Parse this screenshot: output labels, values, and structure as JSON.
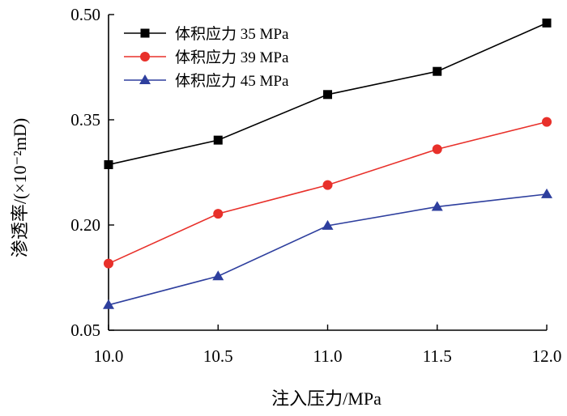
{
  "chart_data": {
    "type": "line",
    "title": "",
    "xlabel": "注入压力/MPa",
    "ylabel": "渗透率/(×10⁻²mD)",
    "x": [
      10.0,
      10.5,
      11.0,
      11.5,
      12.0
    ],
    "x_tick_labels": [
      "10.0",
      "10.5",
      "11.0",
      "11.5",
      "12.0"
    ],
    "xlim": [
      10.0,
      12.0
    ],
    "ylim": [
      0.05,
      0.5
    ],
    "y_ticks": [
      0.05,
      0.2,
      0.35,
      0.5
    ],
    "y_tick_labels": [
      "0.05",
      "0.20",
      "0.35",
      "0.50"
    ],
    "grid": false,
    "legend_position": "top-left",
    "series": [
      {
        "name": "体积应力 35 MPa",
        "marker": "square",
        "color": "#000000",
        "values": [
          0.286,
          0.321,
          0.386,
          0.419,
          0.488
        ]
      },
      {
        "name": "体积应力 39 MPa",
        "marker": "circle",
        "color": "#e8302a",
        "values": [
          0.145,
          0.216,
          0.257,
          0.308,
          0.347
        ]
      },
      {
        "name": "体积应力 45 MPa",
        "marker": "triangle",
        "color": "#2e3f9e",
        "values": [
          0.086,
          0.127,
          0.199,
          0.226,
          0.244
        ]
      }
    ]
  }
}
